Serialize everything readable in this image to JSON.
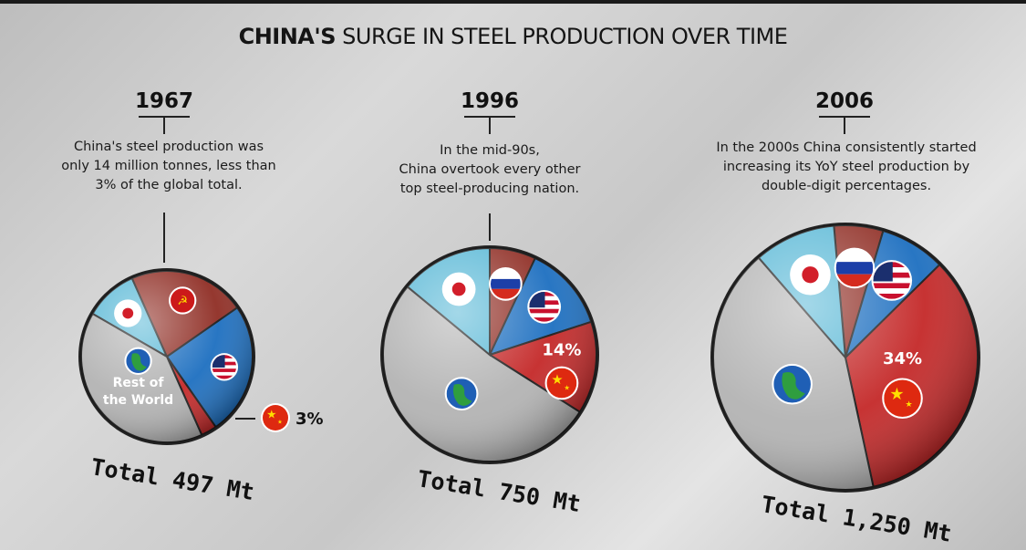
{
  "title_bold": "CHINA'S",
  "title_rest": "SURGE IN STEEL PRODUCTION OVER TIME",
  "colors": {
    "china": "#c42828",
    "usa": "#1d6fc0",
    "russia": "#8f2d24",
    "japan": "#59b8d6",
    "rest": "#b3b3b3"
  },
  "chart_data": [
    {
      "type": "pie",
      "year": "1967",
      "description": [
        "China's steel production was",
        "only 14 million tonnes, less than",
        "3% of the global total."
      ],
      "total_label": "Total 497 Mt",
      "slices": [
        {
          "region": "Japan",
          "share": 0.1,
          "color": "#59b8d6",
          "icon": "japan-flag-icon"
        },
        {
          "region": "USSR",
          "share": 0.22,
          "color": "#8f2d24",
          "icon": "ussr-flag-icon"
        },
        {
          "region": "USA",
          "share": 0.25,
          "color": "#1d6fc0",
          "icon": "usa-flag-icon"
        },
        {
          "region": "China",
          "share": 0.03,
          "color": "#c42828",
          "icon": "china-flag-icon",
          "label": "3%",
          "external": true
        },
        {
          "region": "Rest of the World",
          "share": 0.4,
          "color": "#b3b3b3",
          "icon": "globe-icon",
          "label_lines": [
            "Rest of",
            "the World"
          ]
        }
      ]
    },
    {
      "type": "pie",
      "year": "1996",
      "description": [
        "In the mid-90s,",
        "China overtook every other",
        "top steel-producing nation."
      ],
      "total_label": "Total 750 Mt",
      "slices": [
        {
          "region": "Russia",
          "share": 0.07,
          "color": "#8f2d24",
          "icon": "russia-flag-icon"
        },
        {
          "region": "USA",
          "share": 0.13,
          "color": "#1d6fc0",
          "icon": "usa-flag-icon"
        },
        {
          "region": "China",
          "share": 0.14,
          "color": "#c42828",
          "icon": "china-flag-icon",
          "label": "14%"
        },
        {
          "region": "Rest of the World",
          "share": 0.52,
          "color": "#b3b3b3",
          "icon": "globe-icon"
        },
        {
          "region": "Japan",
          "share": 0.14,
          "color": "#59b8d6",
          "icon": "japan-flag-icon"
        }
      ]
    },
    {
      "type": "pie",
      "year": "2006",
      "description": [
        "In the 2000s China consistently started",
        "increasing its YoY steel production by",
        "double-digit percentages."
      ],
      "total_label": "Total 1,250 Mt",
      "slices": [
        {
          "region": "Russia",
          "share": 0.06,
          "color": "#8f2d24",
          "icon": "russia-flag-icon"
        },
        {
          "region": "USA",
          "share": 0.08,
          "color": "#1d6fc0",
          "icon": "usa-flag-icon"
        },
        {
          "region": "China",
          "share": 0.34,
          "color": "#c42828",
          "icon": "china-flag-icon",
          "label": "34%"
        },
        {
          "region": "Rest of the World",
          "share": 0.42,
          "color": "#b3b3b3",
          "icon": "globe-icon"
        },
        {
          "region": "Japan",
          "share": 0.1,
          "color": "#59b8d6",
          "icon": "japan-flag-icon"
        }
      ]
    }
  ]
}
